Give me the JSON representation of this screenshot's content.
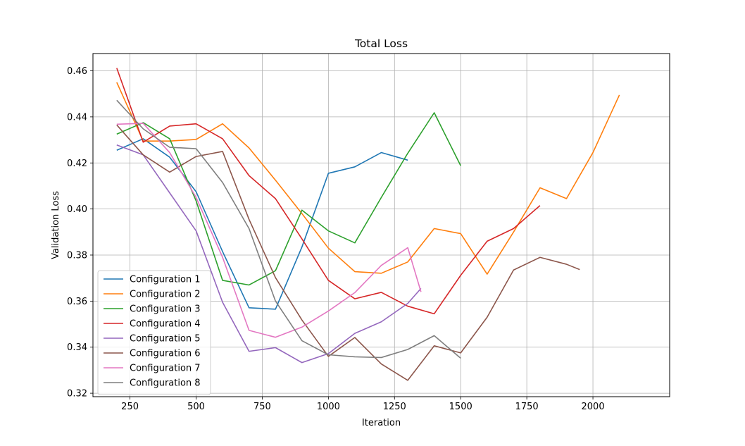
{
  "chart_data": {
    "type": "line",
    "title": "Total Loss",
    "xlabel": "Iteration",
    "ylabel": "Validation Loss",
    "xlim": [
      110,
      2290
    ],
    "ylim": [
      0.3185,
      0.4675
    ],
    "xticks": [
      250,
      500,
      750,
      1000,
      1250,
      1500,
      1750,
      2000
    ],
    "xtick_labels": [
      "250",
      "500",
      "750",
      "1000",
      "1250",
      "1500",
      "1750",
      "2000"
    ],
    "yticks": [
      0.32,
      0.34,
      0.36,
      0.38,
      0.4,
      0.42,
      0.44,
      0.46
    ],
    "ytick_labels": [
      "0.32",
      "0.34",
      "0.36",
      "0.38",
      "0.40",
      "0.42",
      "0.44",
      "0.46"
    ],
    "grid": true,
    "legend_position": "lower-left",
    "series": [
      {
        "name": "Configuration 1",
        "color": "#1f77b4",
        "x": [
          200,
          300,
          400,
          500,
          600,
          700,
          800,
          900,
          1000,
          1100,
          1200,
          1300
        ],
        "y": [
          0.4255,
          0.4305,
          0.4225,
          0.4075,
          0.3815,
          0.3571,
          0.3565,
          0.3835,
          0.4155,
          0.4183,
          0.4245,
          0.4212
        ]
      },
      {
        "name": "Configuration 2",
        "color": "#ff7f0e",
        "x": [
          200,
          300,
          400,
          500,
          600,
          700,
          800,
          900,
          1000,
          1100,
          1200,
          1300,
          1400,
          1500,
          1600,
          1700,
          1800,
          1900,
          2000,
          2100
        ],
        "y": [
          0.455,
          0.4295,
          0.4295,
          0.4302,
          0.437,
          0.4265,
          0.4125,
          0.398,
          0.383,
          0.3728,
          0.3721,
          0.377,
          0.3915,
          0.3893,
          0.3717,
          0.39,
          0.4092,
          0.4045,
          0.4245,
          0.4495
        ]
      },
      {
        "name": "Configuration 3",
        "color": "#2ca02c",
        "x": [
          200,
          300,
          400,
          500,
          600,
          700,
          800,
          900,
          1000,
          1100,
          1200,
          1300,
          1400,
          1500
        ],
        "y": [
          0.4325,
          0.4375,
          0.4305,
          0.4035,
          0.369,
          0.367,
          0.3732,
          0.3995,
          0.3905,
          0.3853,
          0.405,
          0.4242,
          0.4418,
          0.4188
        ]
      },
      {
        "name": "Configuration 4",
        "color": "#d62728",
        "x": [
          200,
          300,
          400,
          500,
          600,
          700,
          800,
          900,
          1000,
          1100,
          1200,
          1300,
          1400,
          1500,
          1600,
          1700,
          1800
        ],
        "y": [
          0.4612,
          0.429,
          0.436,
          0.437,
          0.4305,
          0.4145,
          0.4045,
          0.387,
          0.369,
          0.361,
          0.3638,
          0.3578,
          0.3545,
          0.3712,
          0.386,
          0.3915,
          0.4015
        ]
      },
      {
        "name": "Configuration 5",
        "color": "#9467bd",
        "x": [
          200,
          300,
          400,
          500,
          600,
          700,
          800,
          900,
          1000,
          1100,
          1200,
          1300,
          1350
        ],
        "y": [
          0.4278,
          0.4235,
          0.407,
          0.3905,
          0.3595,
          0.3382,
          0.3398,
          0.3333,
          0.3372,
          0.346,
          0.351,
          0.359,
          0.3655
        ]
      },
      {
        "name": "Configuration 6",
        "color": "#8c564b",
        "x": [
          200,
          300,
          400,
          500,
          600,
          700,
          800,
          900,
          1000,
          1100,
          1200,
          1300,
          1400,
          1500,
          1600,
          1700,
          1800,
          1900,
          1950
        ],
        "y": [
          0.4365,
          0.4235,
          0.416,
          0.4228,
          0.425,
          0.3955,
          0.3702,
          0.3518,
          0.336,
          0.3442,
          0.3327,
          0.3256,
          0.3406,
          0.3375,
          0.353,
          0.3735,
          0.379,
          0.376,
          0.3737
        ]
      },
      {
        "name": "Configuration 7",
        "color": "#e377c2",
        "x": [
          200,
          300,
          400,
          500,
          600,
          700,
          800,
          900,
          1000,
          1100,
          1200,
          1300,
          1350
        ],
        "y": [
          0.4368,
          0.4372,
          0.4245,
          0.405,
          0.379,
          0.3473,
          0.3443,
          0.3487,
          0.3557,
          0.3637,
          0.3755,
          0.3832,
          0.364
        ]
      },
      {
        "name": "Configuration 8",
        "color": "#7f7f7f",
        "x": [
          200,
          300,
          400,
          500,
          600,
          700,
          800,
          900,
          1000,
          1100,
          1200,
          1300,
          1400,
          1500
        ],
        "y": [
          0.4472,
          0.4348,
          0.4268,
          0.4262,
          0.4115,
          0.3915,
          0.36,
          0.3428,
          0.3367,
          0.3358,
          0.3355,
          0.339,
          0.345,
          0.3352
        ]
      }
    ]
  }
}
